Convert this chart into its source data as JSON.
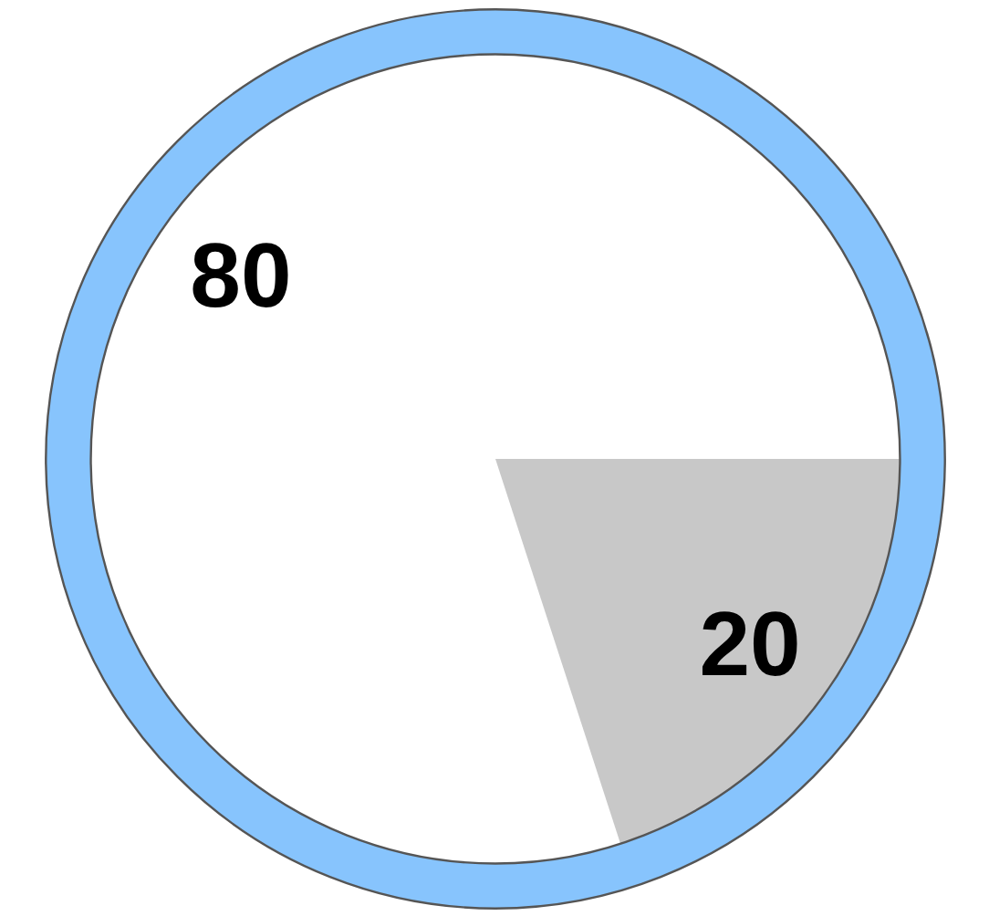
{
  "chart_data": {
    "type": "pie",
    "categories": [
      null,
      null
    ],
    "values": [
      80,
      20
    ],
    "colors": [
      "#ffffff",
      "#c8c8c8"
    ],
    "data_labels": true
  }
}
